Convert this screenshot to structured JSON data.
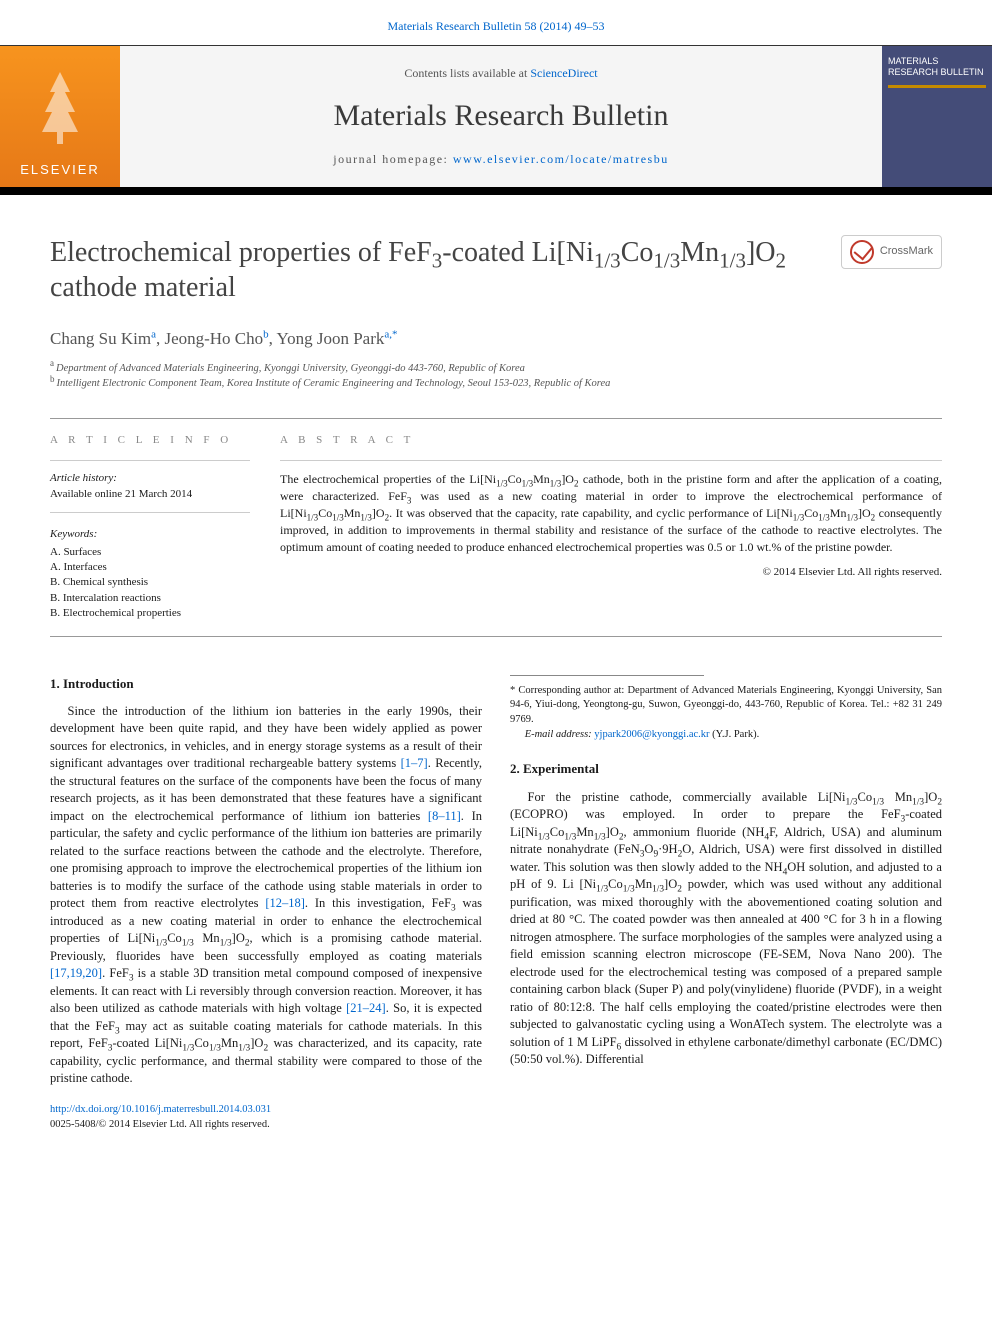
{
  "top_citation_link": "Materials Research Bulletin 58 (2014) 49–53",
  "header": {
    "contents_prefix": "Contents lists available at ",
    "contents_link": "ScienceDirect",
    "journal_name": "Materials Research Bulletin",
    "homepage_prefix": "journal homepage: ",
    "homepage_url": "www.elsevier.com/locate/matresbu",
    "publisher": "ELSEVIER",
    "cover_title": "MATERIALS RESEARCH BULLETIN"
  },
  "crossmark_label": "CrossMark",
  "article": {
    "title_html": "Electrochemical properties of FeF<sub>3</sub>-coated Li[Ni<sub>1/3</sub>Co<sub>1/3</sub>Mn<sub>1/3</sub>]O<sub>2</sub> cathode material",
    "authors_html": "Chang Su Kim<sup>a</sup>, Jeong-Ho Cho<sup>b</sup>, Yong Joon Park<sup>a,*</sup>",
    "affiliations": {
      "a": "Department of Advanced Materials Engineering, Kyonggi University, Gyeonggi-do 443-760, Republic of Korea",
      "b": "Intelligent Electronic Component Team, Korea Institute of Ceramic Engineering and Technology, Seoul 153-023, Republic of Korea"
    }
  },
  "info": {
    "heading": "A R T I C L E   I N F O",
    "history_label": "Article history:",
    "history_value": "Available online 21 March 2014",
    "keywords_label": "Keywords:",
    "keywords": [
      "A. Surfaces",
      "A. Interfaces",
      "B. Chemical synthesis",
      "B. Intercalation reactions",
      "B. Electrochemical properties"
    ]
  },
  "abstract": {
    "heading": "A B S T R A C T",
    "text_html": "The electrochemical properties of the Li[Ni<sub>1/3</sub>Co<sub>1/3</sub>Mn<sub>1/3</sub>]O<sub>2</sub> cathode, both in the pristine form and after the application of a coating, were characterized. FeF<sub>3</sub> was used as a new coating material in order to improve the electrochemical performance of Li[Ni<sub>1/3</sub>Co<sub>1/3</sub>Mn<sub>1/3</sub>]O<sub>2</sub>. It was observed that the capacity, rate capability, and cyclic performance of Li[Ni<sub>1/3</sub>Co<sub>1/3</sub>Mn<sub>1/3</sub>]O<sub>2</sub> consequently improved, in addition to improvements in thermal stability and resistance of the surface of the cathode to reactive electrolytes. The optimum amount of coating needed to produce enhanced electrochemical properties was 0.5 or 1.0 wt.% of the pristine powder.",
    "copyright": "© 2014 Elsevier Ltd. All rights reserved."
  },
  "sections": {
    "intro_head": "1. Introduction",
    "intro_html": "Since the introduction of the lithium ion batteries in the early 1990s, their development have been quite rapid, and they have been widely applied as power sources for electronics, in vehicles, and in energy storage systems as a result of their significant advantages over traditional rechargeable battery systems <a href=\"#\">[1–7]</a>. Recently, the structural features on the surface of the components have been the focus of many research projects, as it has been demonstrated that these features have a significant impact on the electrochemical performance of lithium ion batteries <a href=\"#\">[8–11]</a>. In particular, the safety and cyclic performance of the lithium ion batteries are primarily related to the surface reactions between the cathode and the electrolyte. Therefore, one promising approach to improve the electrochemical properties of the lithium ion batteries is to modify the surface of the cathode using stable materials in order to protect them from reactive electrolytes <a href=\"#\">[12–18]</a>. In this investigation, FeF<sub>3</sub> was introduced as a new coating material in order to enhance the electrochemical properties of Li[Ni<sub>1/3</sub>Co<sub>1/3</sub> Mn<sub>1/3</sub>]O<sub>2</sub>, which is a promising cathode material. Previously, fluorides have been successfully employed as coating materials <a href=\"#\">[17,19,20]</a>. FeF<sub>3</sub> is a stable 3D transition metal compound composed of inexpensive elements. It can react with Li reversibly through conversion reaction. Moreover, it has also been utilized as cathode materials with high voltage <a href=\"#\">[21–24]</a>. So, it is expected that the FeF<sub>3</sub> may act as suitable coating materials for cathode materials. In this report, FeF<sub>3</sub>-coated Li[Ni<sub>1/3</sub>Co<sub>1/3</sub>Mn<sub>1/3</sub>]O<sub>2</sub> was characterized, and its capacity, rate capability, cyclic performance, and thermal stability were compared to those of the pristine cathode.",
    "exp_head": "2. Experimental",
    "exp_html": "For the pristine cathode, commercially available Li[Ni<sub>1/3</sub>Co<sub>1/3</sub> Mn<sub>1/3</sub>]O<sub>2</sub> (ECOPRO) was employed. In order to prepare the FeF<sub>3</sub>-coated Li[Ni<sub>1/3</sub>Co<sub>1/3</sub>Mn<sub>1/3</sub>]O<sub>2</sub>, ammonium fluoride (NH<sub>4</sub>F, Aldrich, USA) and aluminum nitrate nonahydrate (FeN<sub>3</sub>O<sub>9</sub>·9H<sub>2</sub>O, Aldrich, USA) were first dissolved in distilled water. This solution was then slowly added to the NH<sub>4</sub>OH solution, and adjusted to a pH of 9. Li [Ni<sub>1/3</sub>Co<sub>1/3</sub>Mn<sub>1/3</sub>]O<sub>2</sub> powder, which was used without any additional purification, was mixed thoroughly with the abovementioned coating solution and dried at 80 °C. The coated powder was then annealed at 400 °C for 3 h in a flowing nitrogen atmosphere. The surface morphologies of the samples were analyzed using a field emission scanning electron microscope (FE-SEM, Nova Nano 200). The electrode used for the electrochemical testing was composed of a prepared sample containing carbon black (Super P) and poly(vinylidene) fluoride (PVDF), in a weight ratio of 80:12:8. The half cells employing the coated/pristine electrodes were then subjected to galvanostatic cycling using a WonATech system. The electrolyte was a solution of 1 M LiPF<sub>6</sub> dissolved in ethylene carbonate/dimethyl carbonate (EC/DMC) (50:50 vol.%). Differential"
  },
  "footnote": {
    "corresponding_html": "* Corresponding author at: Department of Advanced Materials Engineering, Kyonggi University, San 94-6, Yiui-dong, Yeongtong-gu, Suwon, Gyeonggi-do, 443-760, Republic of Korea. Tel.: +82 31 249 9769.",
    "email_label": "E-mail address: ",
    "email": "yjpark2006@kyonggi.ac.kr",
    "email_author": " (Y.J. Park)."
  },
  "doi": {
    "url": "http://dx.doi.org/10.1016/j.materresbull.2014.03.031",
    "issn_line": "0025-5408/© 2014 Elsevier Ltd. All rights reserved."
  },
  "colors": {
    "link": "#0066cc",
    "elsevier_orange": "#f7941e",
    "cover_bg": "#444c78",
    "border_dark": "#333333",
    "text_muted": "#555555"
  }
}
